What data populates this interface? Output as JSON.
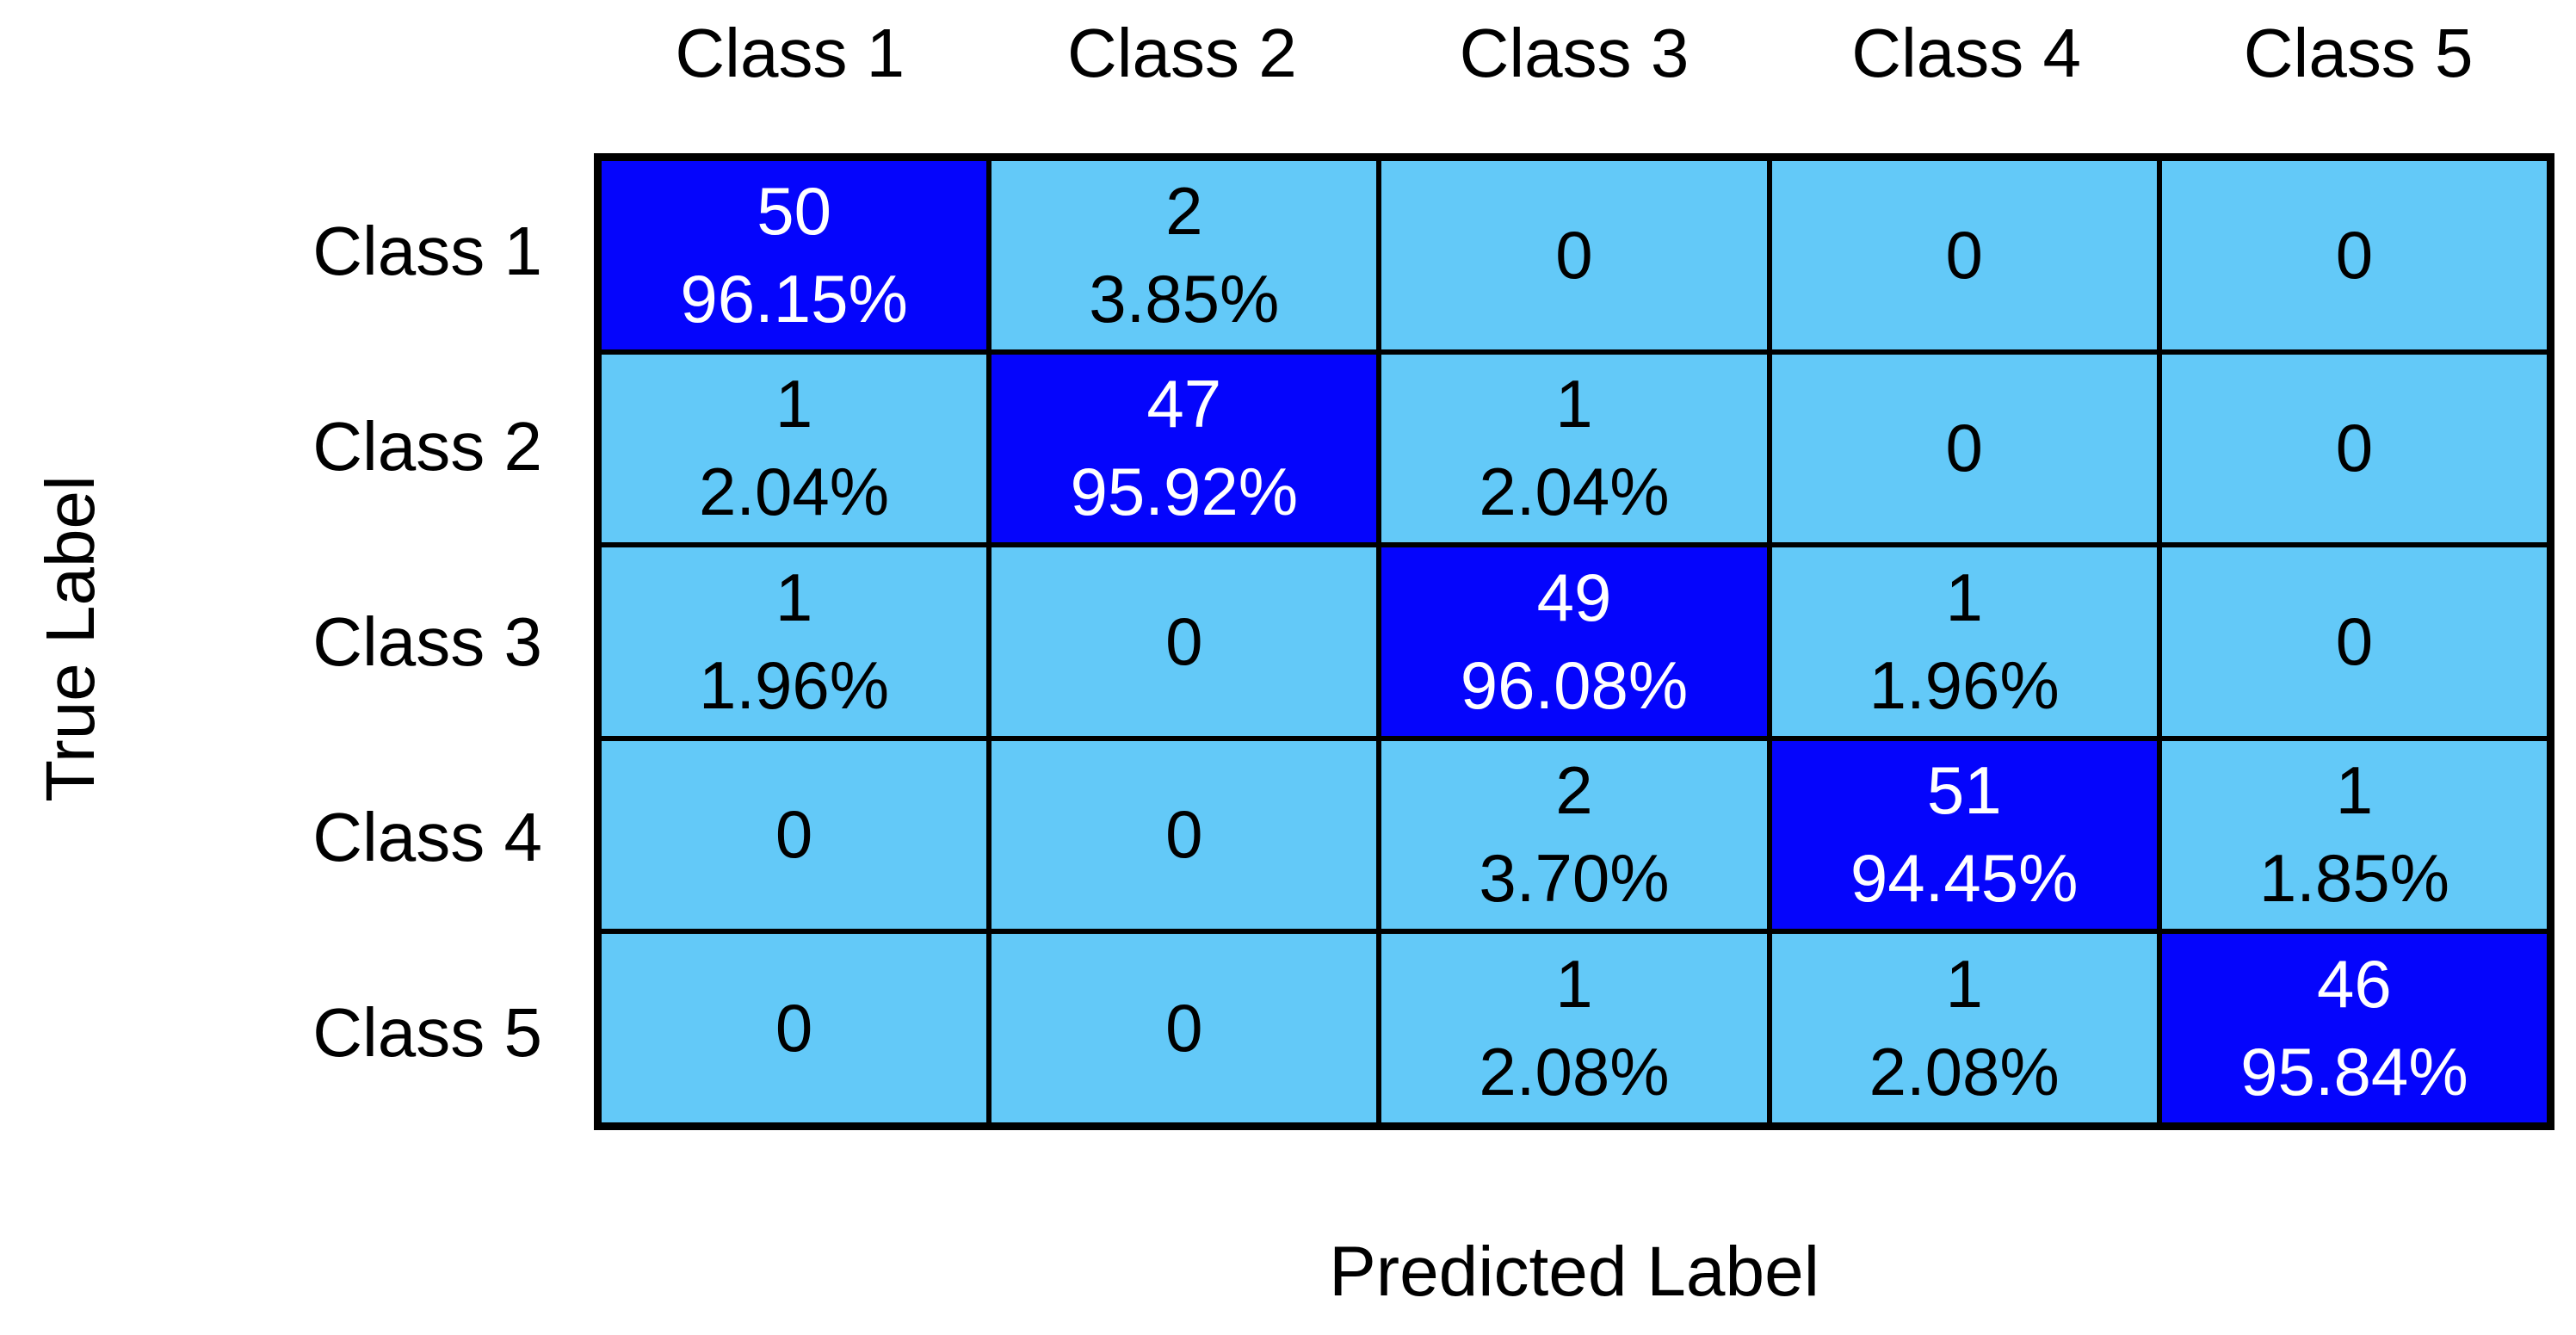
{
  "labels": {
    "x_axis": "Predicted Label",
    "y_axis": "True Label"
  },
  "colors": {
    "diag_bg": "#0505fc",
    "cell_bg": "#63c9f8",
    "diag_text": "#ffffff",
    "cell_text": "#000000",
    "grid_line": "#000000",
    "page_bg": "#ffffff"
  },
  "matrix": {
    "col_labels": [
      "Class 1",
      "Class 2",
      "Class 3",
      "Class 4",
      "Class 5"
    ],
    "row_labels": [
      "Class 1",
      "Class 2",
      "Class 3",
      "Class 4",
      "Class 5"
    ],
    "cells": [
      [
        {
          "count": "50",
          "pct": "96.15%"
        },
        {
          "count": "2",
          "pct": "3.85%"
        },
        {
          "count": "0",
          "pct": ""
        },
        {
          "count": "0",
          "pct": ""
        },
        {
          "count": "0",
          "pct": ""
        }
      ],
      [
        {
          "count": "1",
          "pct": "2.04%"
        },
        {
          "count": "47",
          "pct": "95.92%"
        },
        {
          "count": "1",
          "pct": "2.04%"
        },
        {
          "count": "0",
          "pct": ""
        },
        {
          "count": "0",
          "pct": ""
        }
      ],
      [
        {
          "count": "1",
          "pct": "1.96%"
        },
        {
          "count": "0",
          "pct": ""
        },
        {
          "count": "49",
          "pct": "96.08%"
        },
        {
          "count": "1",
          "pct": "1.96%"
        },
        {
          "count": "0",
          "pct": ""
        }
      ],
      [
        {
          "count": "0",
          "pct": ""
        },
        {
          "count": "0",
          "pct": ""
        },
        {
          "count": "2",
          "pct": "3.70%"
        },
        {
          "count": "51",
          "pct": "94.45%"
        },
        {
          "count": "1",
          "pct": "1.85%"
        }
      ],
      [
        {
          "count": "0",
          "pct": ""
        },
        {
          "count": "0",
          "pct": ""
        },
        {
          "count": "1",
          "pct": "2.08%"
        },
        {
          "count": "1",
          "pct": "2.08%"
        },
        {
          "count": "46",
          "pct": "95.84%"
        }
      ]
    ]
  },
  "chart_data": {
    "type": "heatmap",
    "title": "",
    "xlabel": "Predicted Label",
    "ylabel": "True Label",
    "x_categories": [
      "Class 1",
      "Class 2",
      "Class 3",
      "Class 4",
      "Class 5"
    ],
    "y_categories": [
      "Class 1",
      "Class 2",
      "Class 3",
      "Class 4",
      "Class 5"
    ],
    "values": [
      [
        50,
        2,
        0,
        0,
        0
      ],
      [
        1,
        47,
        1,
        0,
        0
      ],
      [
        1,
        0,
        49,
        1,
        0
      ],
      [
        0,
        0,
        2,
        51,
        1
      ],
      [
        0,
        0,
        1,
        1,
        46
      ]
    ],
    "percent_labels": [
      [
        "96.15%",
        "3.85%",
        "",
        "",
        ""
      ],
      [
        "2.04%",
        "95.92%",
        "2.04%",
        "",
        ""
      ],
      [
        "1.96%",
        "",
        "96.08%",
        "1.96%",
        ""
      ],
      [
        "",
        "",
        "3.70%",
        "94.45%",
        "1.85%"
      ],
      [
        "",
        "",
        "2.08%",
        "2.08%",
        "95.84%"
      ]
    ],
    "layout": {
      "grid": "on",
      "legend": "none",
      "diagonal_color": "#0505fc",
      "off_diagonal_color": "#63c9f8"
    }
  }
}
